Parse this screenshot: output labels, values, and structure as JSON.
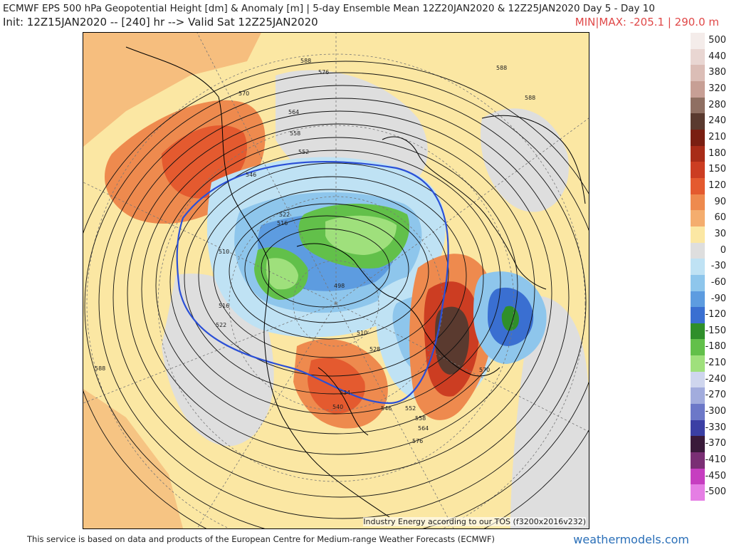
{
  "header": {
    "title": "ECMWF EPS 500 hPa Geopotential Height [dm] & Anomaly [m] | 5-day Ensemble Mean 12Z20JAN2020 & 12Z25JAN2020  Day 5 - Day 10",
    "init": "Init: 12Z15JAN2020 -- [240] hr --> Valid Sat 12Z25JAN2020",
    "minmax": "MIN|MAX: -205.1 | 290.0 m"
  },
  "map": {
    "credit": "Industry Energy according to our TOS (f3200x2016v232)",
    "contour_labels": [
      "588",
      "576",
      "570",
      "564",
      "558",
      "552",
      "546",
      "522",
      "516",
      "510",
      "498",
      "516",
      "522",
      "528",
      "534",
      "540",
      "546",
      "552",
      "558",
      "564",
      "570",
      "576",
      "588",
      "588",
      "588",
      "510"
    ]
  },
  "legend": {
    "items": [
      {
        "label": "500",
        "color": "#f4ecea"
      },
      {
        "label": "440",
        "color": "#e9d6d2"
      },
      {
        "label": "380",
        "color": "#dbbdb6"
      },
      {
        "label": "320",
        "color": "#c79f95"
      },
      {
        "label": "280",
        "color": "#8f6f62"
      },
      {
        "label": "240",
        "color": "#5a3a2f"
      },
      {
        "label": "210",
        "color": "#7a1f12"
      },
      {
        "label": "180",
        "color": "#a82c18"
      },
      {
        "label": "150",
        "color": "#cc3d22"
      },
      {
        "label": "120",
        "color": "#e45a2f"
      },
      {
        "label": "90",
        "color": "#ee8a4e"
      },
      {
        "label": "60",
        "color": "#f4ad6e"
      },
      {
        "label": "30",
        "color": "#fbe7a3"
      },
      {
        "label": "0",
        "color": "#dedede"
      },
      {
        "label": "-30",
        "color": "#bfe2f4"
      },
      {
        "label": "-60",
        "color": "#8ec6ec"
      },
      {
        "label": "-90",
        "color": "#5d9ce0"
      },
      {
        "label": "-120",
        "color": "#3a6fd1"
      },
      {
        "label": "-150",
        "color": "#2f8f2a"
      },
      {
        "label": "-180",
        "color": "#62c04a"
      },
      {
        "label": "-210",
        "color": "#9fe07c"
      },
      {
        "label": "-240",
        "color": "#cfd6ee"
      },
      {
        "label": "-270",
        "color": "#a2acdd"
      },
      {
        "label": "-300",
        "color": "#6c78c8"
      },
      {
        "label": "-330",
        "color": "#3b3fa4"
      },
      {
        "label": "-370",
        "color": "#3a1a3a"
      },
      {
        "label": "-410",
        "color": "#7a2f74"
      },
      {
        "label": "-450",
        "color": "#c63ec0"
      },
      {
        "label": "-500",
        "color": "#e57ee4"
      }
    ]
  },
  "footer": {
    "text": "This service is based on data and products of the European Centre for Medium-range Weather Forecasts (ECMWF)",
    "brand": "weathermodels.com"
  },
  "colors": {
    "minmax": "#e04848",
    "brand": "#2a6fb8"
  }
}
